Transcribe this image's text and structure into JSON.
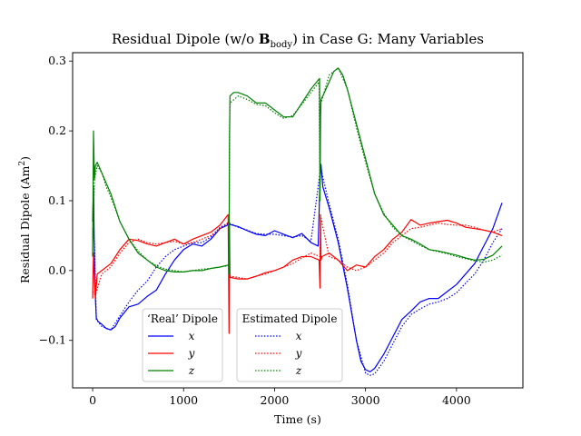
{
  "chart_data": {
    "type": "line",
    "title_prefix": "Residual Dipole (w/o ",
    "title_bold": "B",
    "title_sub": "body",
    "title_suffix": ") in Case G: Many Variables",
    "xlabel": "Time (s)",
    "ylabel_prefix": "Residual Dipole (Am",
    "ylabel_sup": "2",
    "ylabel_suffix": ")",
    "xlim": [
      -220,
      4730
    ],
    "ylim": [
      -0.168,
      0.312
    ],
    "x_ticks": [
      0,
      1000,
      2000,
      3000,
      4000
    ],
    "x_tick_labels": [
      "0",
      "1000",
      "2000",
      "3000",
      "4000"
    ],
    "y_ticks": [
      -0.1,
      0.0,
      0.1,
      0.2,
      0.3
    ],
    "y_tick_labels": [
      "−0.1",
      "0.0",
      "0.1",
      "0.2",
      "0.3"
    ],
    "grid": false,
    "legends": [
      {
        "title": "‘Real’ Dipole",
        "placement": "lower-center-left",
        "entries": [
          {
            "label": "x",
            "color": "#0000ff",
            "dash": "solid"
          },
          {
            "label": "y",
            "color": "#ff0000",
            "dash": "solid"
          },
          {
            "label": "z",
            "color": "#008000",
            "dash": "solid"
          }
        ]
      },
      {
        "title": "Estimated Dipole",
        "placement": "lower-center",
        "entries": [
          {
            "label": "x",
            "color": "#0000ff",
            "dash": "dotted"
          },
          {
            "label": "y",
            "color": "#ff0000",
            "dash": "dotted"
          },
          {
            "label": "z",
            "color": "#008000",
            "dash": "dotted"
          }
        ]
      }
    ],
    "series": [
      {
        "color": "#0000ff",
        "dash": "solid",
        "x": [
          0,
          10,
          20,
          30,
          40,
          60,
          100,
          150,
          200,
          250,
          300,
          400,
          500,
          600,
          700,
          800,
          900,
          1000,
          1100,
          1200,
          1300,
          1400,
          1480,
          1500,
          1510,
          1600,
          1700,
          1800,
          1900,
          2000,
          2100,
          2200,
          2300,
          2400,
          2480,
          2500,
          2510,
          2530,
          2600,
          2700,
          2800,
          2900,
          2950,
          3000,
          3050,
          3100,
          3200,
          3300,
          3400,
          3500,
          3600,
          3700,
          3800,
          3900,
          4000,
          4100,
          4200,
          4300,
          4400,
          4500
        ],
        "y": [
          0.07,
          0.12,
          0.02,
          -0.04,
          -0.068,
          -0.073,
          -0.077,
          -0.083,
          -0.085,
          -0.08,
          -0.068,
          -0.052,
          -0.048,
          -0.037,
          -0.028,
          -0.005,
          0.015,
          0.03,
          0.038,
          0.035,
          0.045,
          0.06,
          0.065,
          0.07,
          0.066,
          0.063,
          0.057,
          0.052,
          0.05,
          0.057,
          0.052,
          0.047,
          0.053,
          0.04,
          0.035,
          0.13,
          0.152,
          0.12,
          0.09,
          0.04,
          -0.025,
          -0.1,
          -0.13,
          -0.142,
          -0.145,
          -0.14,
          -0.12,
          -0.095,
          -0.07,
          -0.058,
          -0.045,
          -0.04,
          -0.04,
          -0.03,
          -0.02,
          -0.005,
          0.01,
          0.035,
          0.06,
          0.097
        ]
      },
      {
        "color": "#0000ff",
        "dash": "dotted",
        "x": [
          0,
          20,
          40,
          100,
          200,
          300,
          400,
          500,
          600,
          700,
          800,
          900,
          1000,
          1100,
          1200,
          1300,
          1400,
          1500,
          1600,
          1700,
          1800,
          1900,
          2000,
          2100,
          2200,
          2300,
          2400,
          2500,
          2510,
          2600,
          2700,
          2800,
          2900,
          3000,
          3050,
          3100,
          3200,
          3300,
          3400,
          3500,
          3600,
          3700,
          3800,
          3900,
          4000,
          4100,
          4200,
          4300,
          4400,
          4500
        ],
        "y": [
          0.06,
          0.04,
          -0.07,
          -0.08,
          -0.085,
          -0.065,
          -0.045,
          -0.028,
          -0.015,
          0.005,
          0.02,
          0.03,
          0.035,
          0.04,
          0.04,
          0.048,
          0.062,
          0.068,
          0.062,
          0.058,
          0.053,
          0.052,
          0.052,
          0.05,
          0.048,
          0.05,
          0.042,
          0.14,
          0.145,
          0.095,
          0.045,
          -0.02,
          -0.1,
          -0.147,
          -0.15,
          -0.148,
          -0.13,
          -0.105,
          -0.08,
          -0.063,
          -0.055,
          -0.048,
          -0.045,
          -0.04,
          -0.032,
          -0.018,
          -0.005,
          0.015,
          0.04,
          0.06
        ]
      },
      {
        "color": "#ff0000",
        "dash": "solid",
        "x": [
          0,
          10,
          20,
          30,
          50,
          100,
          200,
          300,
          400,
          500,
          600,
          700,
          800,
          900,
          1000,
          1100,
          1200,
          1300,
          1400,
          1490,
          1500,
          1505,
          1510,
          1520,
          1600,
          1700,
          1800,
          1900,
          2000,
          2100,
          2200,
          2300,
          2400,
          2490,
          2500,
          2505,
          2510,
          2520,
          2600,
          2700,
          2800,
          2900,
          3000,
          3100,
          3200,
          3300,
          3400,
          3500,
          3600,
          3700,
          3800,
          3900,
          4000,
          4100,
          4200,
          4300,
          4400,
          4500
        ],
        "y": [
          -0.04,
          0.025,
          -0.01,
          -0.04,
          -0.005,
          0.0,
          0.01,
          0.03,
          0.045,
          0.043,
          0.038,
          0.035,
          0.04,
          0.045,
          0.038,
          0.045,
          0.05,
          0.055,
          0.065,
          0.08,
          -0.09,
          0.065,
          -0.01,
          -0.01,
          -0.012,
          -0.012,
          -0.008,
          -0.003,
          0.0,
          0.005,
          0.015,
          0.02,
          0.02,
          0.015,
          -0.025,
          0.08,
          0.015,
          0.02,
          0.025,
          0.015,
          0.0,
          0.008,
          0.005,
          0.02,
          0.03,
          0.045,
          0.055,
          0.073,
          0.065,
          0.068,
          0.07,
          0.072,
          0.068,
          0.062,
          0.06,
          0.058,
          0.055,
          0.05
        ]
      },
      {
        "color": "#ff0000",
        "dash": "dotted",
        "x": [
          0,
          30,
          100,
          200,
          300,
          400,
          500,
          600,
          700,
          800,
          900,
          1000,
          1100,
          1200,
          1300,
          1400,
          1500,
          1510,
          1600,
          1700,
          1800,
          1900,
          2000,
          2100,
          2200,
          2300,
          2400,
          2500,
          2510,
          2600,
          2700,
          2800,
          2900,
          3000,
          3100,
          3200,
          3300,
          3400,
          3500,
          3600,
          3700,
          3800,
          3900,
          4000,
          4100,
          4200,
          4300,
          4400,
          4500
        ],
        "y": [
          -0.03,
          -0.035,
          -0.005,
          0.005,
          0.025,
          0.04,
          0.045,
          0.04,
          0.038,
          0.04,
          0.042,
          0.038,
          0.04,
          0.045,
          0.05,
          0.06,
          0.07,
          -0.008,
          -0.01,
          -0.012,
          -0.008,
          -0.005,
          0.0,
          0.005,
          0.01,
          0.018,
          0.025,
          0.02,
          0.075,
          0.02,
          0.015,
          0.005,
          0.0,
          0.005,
          0.015,
          0.025,
          0.04,
          0.05,
          0.06,
          0.062,
          0.065,
          0.068,
          0.066,
          0.065,
          0.065,
          0.062,
          0.058,
          0.055,
          0.06
        ]
      },
      {
        "color": "#008000",
        "dash": "solid",
        "x": [
          0,
          10,
          20,
          30,
          50,
          100,
          150,
          200,
          250,
          300,
          400,
          500,
          600,
          700,
          800,
          900,
          1000,
          1100,
          1200,
          1300,
          1400,
          1495,
          1500,
          1505,
          1510,
          1550,
          1600,
          1700,
          1800,
          1900,
          2000,
          2100,
          2200,
          2300,
          2400,
          2495,
          2500,
          2505,
          2510,
          2530,
          2600,
          2650,
          2700,
          2750,
          2800,
          2900,
          3000,
          3100,
          3200,
          3300,
          3400,
          3500,
          3600,
          3700,
          3800,
          3900,
          4000,
          4100,
          4200,
          4300,
          4400,
          4500
        ],
        "y": [
          0.02,
          0.2,
          0.13,
          0.15,
          0.155,
          0.14,
          0.125,
          0.11,
          0.09,
          0.07,
          0.045,
          0.025,
          0.015,
          0.005,
          0.0,
          -0.002,
          -0.002,
          0.0,
          0.0,
          0.003,
          0.005,
          0.008,
          -0.005,
          0.18,
          0.25,
          0.255,
          0.255,
          0.25,
          0.24,
          0.24,
          0.23,
          0.22,
          0.22,
          0.24,
          0.26,
          0.275,
          0.1,
          0.22,
          0.245,
          0.25,
          0.27,
          0.285,
          0.29,
          0.28,
          0.26,
          0.21,
          0.16,
          0.11,
          0.08,
          0.065,
          0.05,
          0.045,
          0.038,
          0.03,
          0.028,
          0.025,
          0.022,
          0.018,
          0.015,
          0.016,
          0.022,
          0.035
        ]
      },
      {
        "color": "#008000",
        "dash": "dotted",
        "x": [
          0,
          20,
          50,
          100,
          150,
          200,
          250,
          300,
          400,
          500,
          600,
          700,
          800,
          900,
          1000,
          1100,
          1200,
          1300,
          1400,
          1500,
          1505,
          1510,
          1600,
          1700,
          1800,
          1900,
          2000,
          2100,
          2200,
          2300,
          2400,
          2490,
          2500,
          2505,
          2510,
          2600,
          2700,
          2800,
          2900,
          3000,
          3100,
          3200,
          3300,
          3400,
          3500,
          3600,
          3700,
          3800,
          3900,
          4000,
          4100,
          4200,
          4300,
          4400,
          4500
        ],
        "y": [
          0.03,
          0.13,
          0.15,
          0.14,
          0.12,
          0.105,
          0.088,
          0.07,
          0.045,
          0.028,
          0.015,
          0.007,
          0.002,
          0.0,
          -0.002,
          0.0,
          0.002,
          0.003,
          0.005,
          0.007,
          0.2,
          0.24,
          0.25,
          0.245,
          0.238,
          0.236,
          0.226,
          0.218,
          0.222,
          0.238,
          0.255,
          0.27,
          0.11,
          0.22,
          0.24,
          0.28,
          0.29,
          0.26,
          0.205,
          0.155,
          0.11,
          0.082,
          0.062,
          0.05,
          0.043,
          0.036,
          0.03,
          0.027,
          0.024,
          0.02,
          0.017,
          0.014,
          0.012,
          0.015,
          0.022
        ]
      }
    ]
  }
}
